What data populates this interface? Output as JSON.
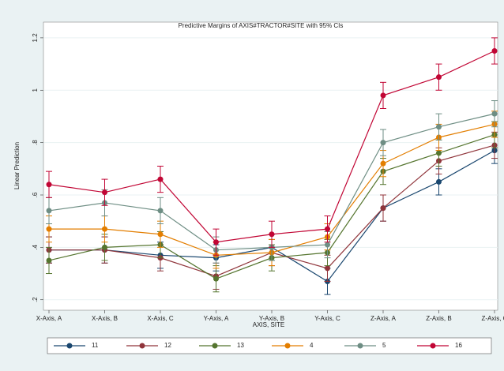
{
  "chart_data": {
    "type": "line",
    "title": "Predictive Margins of AXIS#TRACTOR#SITE with 95% CIs",
    "x_label": "AXIS, SITE",
    "y_label": "Linear Prediction",
    "categories": [
      "X-Axis, A",
      "X-Axis, B",
      "X-Axis, C",
      "Y-Axis, A",
      "Y-Axis, B",
      "Y-Axis, C",
      "Z-Axis, A",
      "Z-Axis, B",
      "Z-Axis, C"
    ],
    "ylim": [
      0.16,
      1.26
    ],
    "yticks": [
      {
        "value": 0.2,
        "label": ".2"
      },
      {
        "value": 0.4,
        "label": ".4"
      },
      {
        "value": 0.6,
        "label": ".6"
      },
      {
        "value": 0.8,
        "label": ".8"
      },
      1,
      {
        "value": 1.2,
        "label": "1.2"
      }
    ],
    "series": [
      {
        "name": "11",
        "color": "#1a476f",
        "values": [
          0.39,
          0.39,
          0.37,
          0.36,
          0.4,
          0.27,
          0.55,
          0.65,
          0.77
        ],
        "errors": [
          0.05,
          0.05,
          0.05,
          0.05,
          0.05,
          0.05,
          0.05,
          0.05,
          0.05
        ]
      },
      {
        "name": "12",
        "color": "#90353b",
        "values": [
          0.39,
          0.39,
          0.36,
          0.29,
          0.38,
          0.32,
          0.55,
          0.73,
          0.79
        ],
        "errors": [
          0.05,
          0.05,
          0.05,
          0.05,
          0.05,
          0.05,
          0.05,
          0.05,
          0.05
        ]
      },
      {
        "name": "13",
        "color": "#55752f",
        "values": [
          0.35,
          0.4,
          0.41,
          0.28,
          0.36,
          0.38,
          0.69,
          0.76,
          0.83
        ],
        "errors": [
          0.05,
          0.05,
          0.05,
          0.05,
          0.05,
          0.05,
          0.05,
          0.05,
          0.05
        ]
      },
      {
        "name": "4",
        "color": "#e37e00",
        "values": [
          0.47,
          0.47,
          0.45,
          0.37,
          0.38,
          0.44,
          0.72,
          0.82,
          0.87
        ],
        "errors": [
          0.05,
          0.05,
          0.05,
          0.05,
          0.05,
          0.05,
          0.05,
          0.05,
          0.05
        ]
      },
      {
        "name": "5",
        "color": "#6e8e84",
        "values": [
          0.54,
          0.57,
          0.54,
          0.39,
          0.4,
          0.41,
          0.8,
          0.86,
          0.91
        ],
        "errors": [
          0.05,
          0.05,
          0.05,
          0.05,
          0.05,
          0.05,
          0.05,
          0.05,
          0.05
        ]
      },
      {
        "name": "16",
        "color": "#c10534",
        "values": [
          0.64,
          0.61,
          0.66,
          0.42,
          0.45,
          0.47,
          0.98,
          1.05,
          1.15
        ],
        "errors": [
          0.05,
          0.05,
          0.05,
          0.05,
          0.05,
          0.05,
          0.05,
          0.05,
          0.05
        ]
      }
    ]
  }
}
